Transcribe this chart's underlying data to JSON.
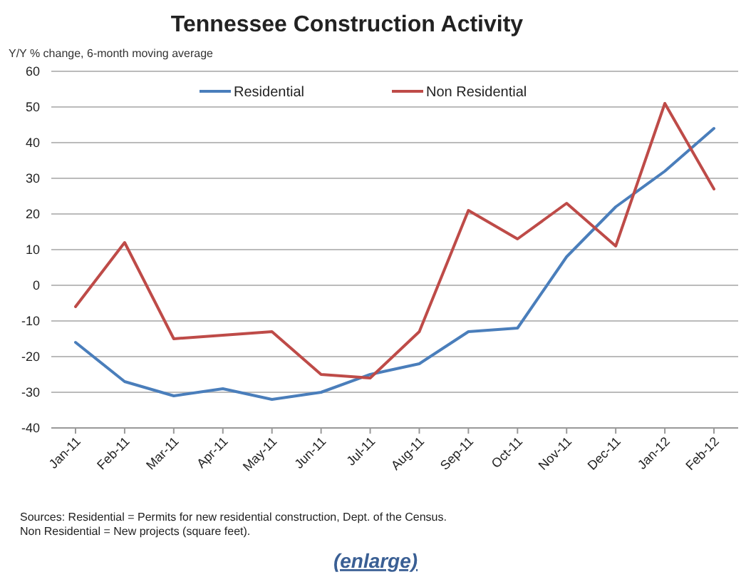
{
  "chart_data": {
    "type": "line",
    "title": "Tennessee Construction Activity",
    "subtitle": "Y/Y % change, 6-month moving average",
    "categories": [
      "Jan-11",
      "Feb-11",
      "Mar-11",
      "Apr-11",
      "May-11",
      "Jun-11",
      "Jul-11",
      "Aug-11",
      "Sep-11",
      "Oct-11",
      "Nov-11",
      "Dec-11",
      "Jan-12",
      "Feb-12"
    ],
    "series": [
      {
        "name": "Residential",
        "color": "#4a7ebb",
        "values": [
          -16,
          -27,
          -31,
          -29,
          -32,
          -30,
          -25,
          -22,
          -13,
          -12,
          8,
          22,
          32,
          44
        ]
      },
      {
        "name": "Non Residential",
        "color": "#be4b48",
        "values": [
          -6,
          12,
          -15,
          -14,
          -13,
          -25,
          -26,
          -13,
          21,
          13,
          23,
          11,
          51,
          27
        ]
      }
    ],
    "ylim": [
      -40,
      60
    ],
    "yticks": [
      -40,
      -30,
      -20,
      -10,
      0,
      10,
      20,
      30,
      40,
      50,
      60
    ],
    "grid": "y",
    "legend": "top",
    "annotations": [
      "Sources: Residential = Permits for new residential construction, Dept. of the Census.",
      "Non Residential = New projects (square feet).",
      "(enlarge)"
    ]
  }
}
